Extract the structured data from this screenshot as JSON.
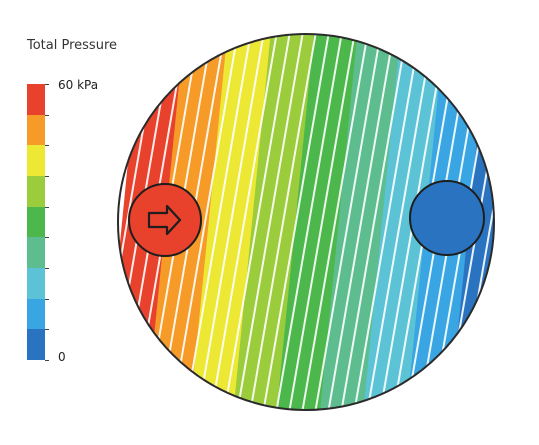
{
  "legend": {
    "title": "Total Pressure",
    "max_label": "60 kPa",
    "min_label": "0",
    "colors_top_to_bottom": [
      "#e8412c",
      "#f69a28",
      "#ede833",
      "#9bcc3c",
      "#4cb74a",
      "#5ebd8f",
      "#5cc3d6",
      "#3aa5e3",
      "#2a73c0"
    ]
  },
  "plot": {
    "band_colors_left_to_right": [
      "#e8412c",
      "#f69a28",
      "#ede833",
      "#9bcc3c",
      "#4cb74a",
      "#5ebd8f",
      "#5cc3d6",
      "#3aa5e3",
      "#2a73c0"
    ],
    "inlet_icon": "arrow-right-icon",
    "outlet_icon": "circle-icon"
  }
}
